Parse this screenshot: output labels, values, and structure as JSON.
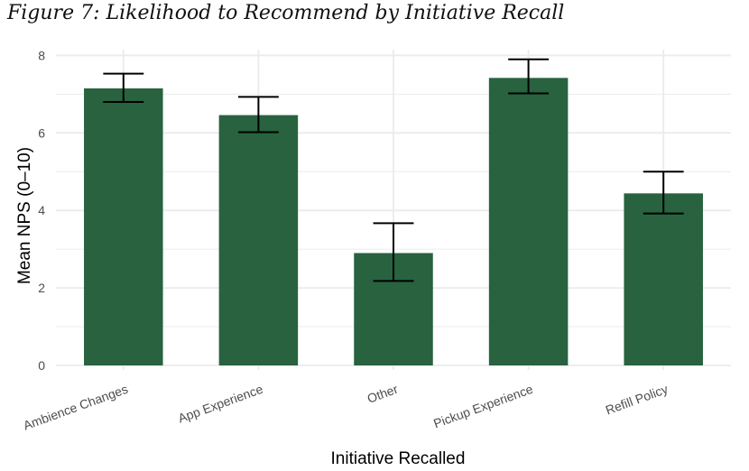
{
  "figure_title": "Figure 7: Likelihood to Recommend by Initiative Recall",
  "chart_data": {
    "type": "bar",
    "title": "",
    "xlabel": "Initiative Recalled",
    "ylabel": "Mean NPS (0–10)",
    "categories": [
      "Ambience Changes",
      "App Experience",
      "Other",
      "Pickup Experience",
      "Refill Policy"
    ],
    "series": [
      {
        "values": [
          7.15,
          6.46,
          2.9,
          7.42,
          4.44
        ],
        "error_low": [
          6.8,
          6.02,
          2.18,
          7.02,
          3.92
        ],
        "error_high": [
          7.53,
          6.93,
          3.67,
          7.9,
          5.0
        ]
      }
    ],
    "ylim": [
      0,
      8.15
    ],
    "yticks": [
      0,
      2,
      4,
      6,
      8
    ],
    "grid": true,
    "bar_color": "#28623f",
    "error_bar_color": "#000000",
    "grid_color": "#ebebeb"
  }
}
